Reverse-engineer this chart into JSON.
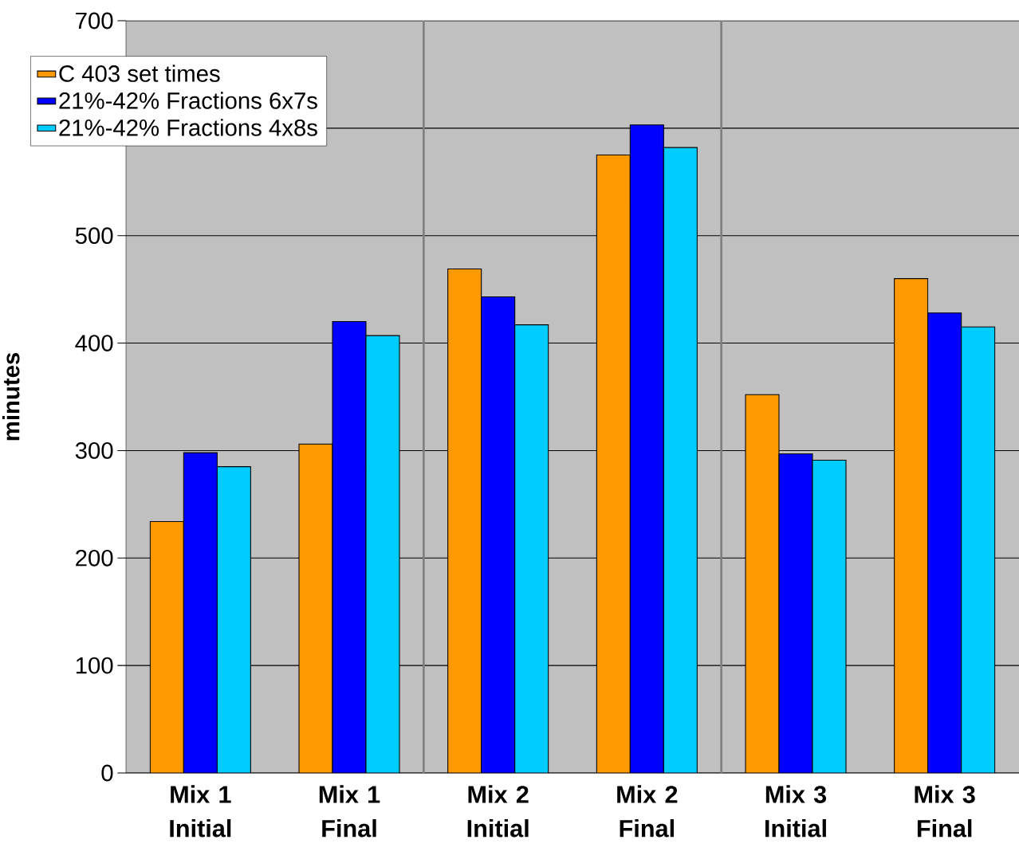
{
  "chart_data": {
    "type": "bar",
    "ylabel": "minutes",
    "categories": [
      "Mix 1 Initial",
      "Mix 1 Final",
      "Mix 2 Initial",
      "Mix 2 Final",
      "Mix 3 Initial",
      "Mix 3 Final"
    ],
    "series": [
      {
        "name": "C 403 set times",
        "color": "#ff9900",
        "values": [
          234,
          306,
          469,
          575,
          352,
          460
        ]
      },
      {
        "name": "21%-42% Fractions 6x7s",
        "color": "#0000ff",
        "values": [
          298,
          420,
          443,
          603,
          297,
          428
        ]
      },
      {
        "name": "21%-42% Fractions 4x8s",
        "color": "#00ccff",
        "values": [
          285,
          407,
          417,
          582,
          291,
          415
        ]
      }
    ],
    "ylim": [
      0,
      700
    ],
    "yticks": [
      0,
      100,
      200,
      300,
      400,
      500,
      {
        "value": 600,
        "label": null
      },
      700
    ],
    "grid": "y",
    "legend": "top left"
  }
}
